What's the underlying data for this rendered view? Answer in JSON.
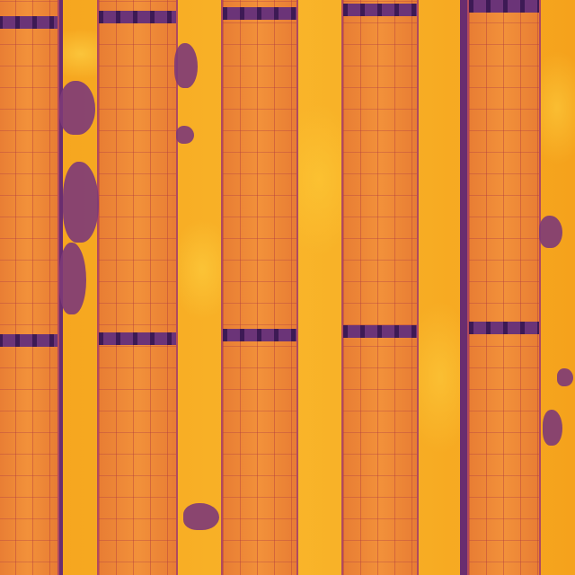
{
  "scene": {
    "description_kind": "thermal-aerial-solar-array",
    "palette": {
      "hot_ground": "#f9b52a",
      "panel": "#f08a2c",
      "cool": "#5c2a6a",
      "shadow": "#7d3a78"
    },
    "panel_rows": 5
  }
}
